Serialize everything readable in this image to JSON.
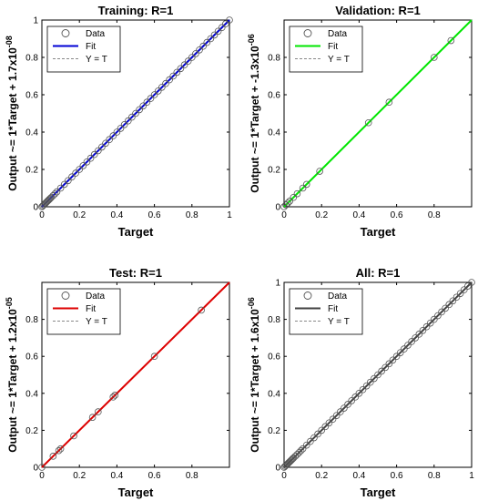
{
  "chart_data": [
    {
      "type": "scatter",
      "title": "Training: R=1",
      "xlabel": "Target",
      "ylabel": {
        "main": "Output ~= 1*Target + 1.7x10",
        "exp": "-08"
      },
      "xlim": [
        0,
        1
      ],
      "ylim": [
        0,
        1
      ],
      "xticks": [
        "0",
        "0.2",
        "0.4",
        "0.6",
        "0.8",
        "1"
      ],
      "yticks": [
        "0",
        "0.2",
        "0.4",
        "0.6",
        "0.8",
        "1"
      ],
      "grid": false,
      "legend": {
        "position": "top-left",
        "entries": [
          "Data",
          "Fit",
          "Y = T"
        ]
      },
      "fit_color": "#0000d4",
      "fit": {
        "slope": 1,
        "intercept": 0
      },
      "points": [
        [
          0,
          0
        ],
        [
          0.005,
          0.005
        ],
        [
          0.01,
          0.01
        ],
        [
          0.015,
          0.015
        ],
        [
          0.02,
          0.02
        ],
        [
          0.025,
          0.025
        ],
        [
          0.03,
          0.03
        ],
        [
          0.035,
          0.035
        ],
        [
          0.04,
          0.04
        ],
        [
          0.045,
          0.045
        ],
        [
          0.05,
          0.05
        ],
        [
          0.06,
          0.06
        ],
        [
          0.07,
          0.07
        ],
        [
          0.08,
          0.08
        ],
        [
          0.1,
          0.1
        ],
        [
          0.12,
          0.12
        ],
        [
          0.14,
          0.14
        ],
        [
          0.16,
          0.16
        ],
        [
          0.18,
          0.18
        ],
        [
          0.2,
          0.2
        ],
        [
          0.22,
          0.22
        ],
        [
          0.24,
          0.24
        ],
        [
          0.26,
          0.26
        ],
        [
          0.28,
          0.28
        ],
        [
          0.3,
          0.3
        ],
        [
          0.32,
          0.32
        ],
        [
          0.34,
          0.34
        ],
        [
          0.36,
          0.36
        ],
        [
          0.38,
          0.38
        ],
        [
          0.4,
          0.4
        ],
        [
          0.42,
          0.42
        ],
        [
          0.44,
          0.44
        ],
        [
          0.46,
          0.46
        ],
        [
          0.48,
          0.48
        ],
        [
          0.5,
          0.5
        ],
        [
          0.52,
          0.52
        ],
        [
          0.54,
          0.54
        ],
        [
          0.56,
          0.56
        ],
        [
          0.58,
          0.58
        ],
        [
          0.6,
          0.6
        ],
        [
          0.62,
          0.62
        ],
        [
          0.64,
          0.64
        ],
        [
          0.66,
          0.66
        ],
        [
          0.68,
          0.68
        ],
        [
          0.7,
          0.7
        ],
        [
          0.72,
          0.72
        ],
        [
          0.74,
          0.74
        ],
        [
          0.76,
          0.76
        ],
        [
          0.78,
          0.78
        ],
        [
          0.8,
          0.8
        ],
        [
          0.82,
          0.82
        ],
        [
          0.84,
          0.84
        ],
        [
          0.86,
          0.86
        ],
        [
          0.88,
          0.88
        ],
        [
          0.9,
          0.9
        ],
        [
          0.92,
          0.92
        ],
        [
          0.94,
          0.94
        ],
        [
          0.96,
          0.96
        ],
        [
          0.98,
          0.98
        ],
        [
          1,
          1
        ]
      ]
    },
    {
      "type": "scatter",
      "title": "Validation: R=1",
      "xlabel": "Target",
      "ylabel": {
        "main": "Output ~= 1*Target + -1.3x10",
        "exp": "-06"
      },
      "xlim": [
        0,
        1
      ],
      "ylim": [
        0,
        1
      ],
      "xticks": [
        "0",
        "0.2",
        "0.4",
        "0.6",
        "0.8"
      ],
      "yticks": [
        "0",
        "0.2",
        "0.4",
        "0.6",
        "0.8"
      ],
      "grid": false,
      "legend": {
        "position": "top-left",
        "entries": [
          "Data",
          "Fit",
          "Y = T"
        ]
      },
      "fit_color": "#00e600",
      "fit": {
        "slope": 1,
        "intercept": 0
      },
      "points": [
        [
          0,
          0
        ],
        [
          0.01,
          0.01
        ],
        [
          0.02,
          0.02
        ],
        [
          0.03,
          0.03
        ],
        [
          0.05,
          0.05
        ],
        [
          0.07,
          0.07
        ],
        [
          0.1,
          0.1
        ],
        [
          0.12,
          0.12
        ],
        [
          0.19,
          0.19
        ],
        [
          0.45,
          0.45
        ],
        [
          0.56,
          0.56
        ],
        [
          0.8,
          0.8
        ],
        [
          0.89,
          0.89
        ]
      ]
    },
    {
      "type": "scatter",
      "title": "Test: R=1",
      "xlabel": "Target",
      "ylabel": {
        "main": "Output ~= 1*Target + 1.2x10",
        "exp": "-05"
      },
      "xlim": [
        0,
        1
      ],
      "ylim": [
        0,
        1
      ],
      "xticks": [
        "0",
        "0.2",
        "0.4",
        "0.6",
        "0.8"
      ],
      "yticks": [
        "0",
        "0.2",
        "0.4",
        "0.6",
        "0.8"
      ],
      "grid": false,
      "legend": {
        "position": "top-left",
        "entries": [
          "Data",
          "Fit",
          "Y = T"
        ]
      },
      "fit_color": "#dd0000",
      "fit": {
        "slope": 1,
        "intercept": 0
      },
      "points": [
        [
          0,
          0
        ],
        [
          0.06,
          0.06
        ],
        [
          0.09,
          0.09
        ],
        [
          0.1,
          0.1
        ],
        [
          0.17,
          0.17
        ],
        [
          0.27,
          0.27
        ],
        [
          0.3,
          0.3
        ],
        [
          0.38,
          0.38
        ],
        [
          0.39,
          0.39
        ],
        [
          0.6,
          0.6
        ],
        [
          0.85,
          0.85
        ]
      ]
    },
    {
      "type": "scatter",
      "title": "All: R=1",
      "xlabel": "Target",
      "ylabel": {
        "main": "Output ~= 1*Target + 1.6x10",
        "exp": "-06"
      },
      "xlim": [
        0,
        1
      ],
      "ylim": [
        0,
        1
      ],
      "xticks": [
        "0",
        "0.2",
        "0.4",
        "0.6",
        "0.8",
        "1"
      ],
      "yticks": [
        "0",
        "0.2",
        "0.4",
        "0.6",
        "0.8",
        "1"
      ],
      "grid": false,
      "legend": {
        "position": "top-left",
        "entries": [
          "Data",
          "Fit",
          "Y = T"
        ]
      },
      "fit_color": "#404040",
      "fit": {
        "slope": 1,
        "intercept": 0
      },
      "points": [
        [
          0,
          0
        ],
        [
          0.005,
          0.005
        ],
        [
          0.01,
          0.01
        ],
        [
          0.015,
          0.015
        ],
        [
          0.02,
          0.02
        ],
        [
          0.025,
          0.025
        ],
        [
          0.03,
          0.03
        ],
        [
          0.035,
          0.035
        ],
        [
          0.04,
          0.04
        ],
        [
          0.045,
          0.045
        ],
        [
          0.05,
          0.05
        ],
        [
          0.06,
          0.06
        ],
        [
          0.07,
          0.07
        ],
        [
          0.08,
          0.08
        ],
        [
          0.09,
          0.09
        ],
        [
          0.1,
          0.1
        ],
        [
          0.12,
          0.12
        ],
        [
          0.14,
          0.14
        ],
        [
          0.16,
          0.16
        ],
        [
          0.18,
          0.18
        ],
        [
          0.2,
          0.2
        ],
        [
          0.22,
          0.22
        ],
        [
          0.24,
          0.24
        ],
        [
          0.26,
          0.26
        ],
        [
          0.28,
          0.28
        ],
        [
          0.3,
          0.3
        ],
        [
          0.32,
          0.32
        ],
        [
          0.34,
          0.34
        ],
        [
          0.36,
          0.36
        ],
        [
          0.38,
          0.38
        ],
        [
          0.4,
          0.4
        ],
        [
          0.42,
          0.42
        ],
        [
          0.44,
          0.44
        ],
        [
          0.46,
          0.46
        ],
        [
          0.48,
          0.48
        ],
        [
          0.5,
          0.5
        ],
        [
          0.52,
          0.52
        ],
        [
          0.54,
          0.54
        ],
        [
          0.56,
          0.56
        ],
        [
          0.58,
          0.58
        ],
        [
          0.6,
          0.6
        ],
        [
          0.62,
          0.62
        ],
        [
          0.64,
          0.64
        ],
        [
          0.66,
          0.66
        ],
        [
          0.68,
          0.68
        ],
        [
          0.7,
          0.7
        ],
        [
          0.72,
          0.72
        ],
        [
          0.74,
          0.74
        ],
        [
          0.76,
          0.76
        ],
        [
          0.78,
          0.78
        ],
        [
          0.8,
          0.8
        ],
        [
          0.82,
          0.82
        ],
        [
          0.84,
          0.84
        ],
        [
          0.86,
          0.86
        ],
        [
          0.88,
          0.88
        ],
        [
          0.9,
          0.9
        ],
        [
          0.92,
          0.92
        ],
        [
          0.94,
          0.94
        ],
        [
          0.96,
          0.96
        ],
        [
          0.98,
          0.98
        ],
        [
          1,
          1
        ]
      ]
    }
  ]
}
